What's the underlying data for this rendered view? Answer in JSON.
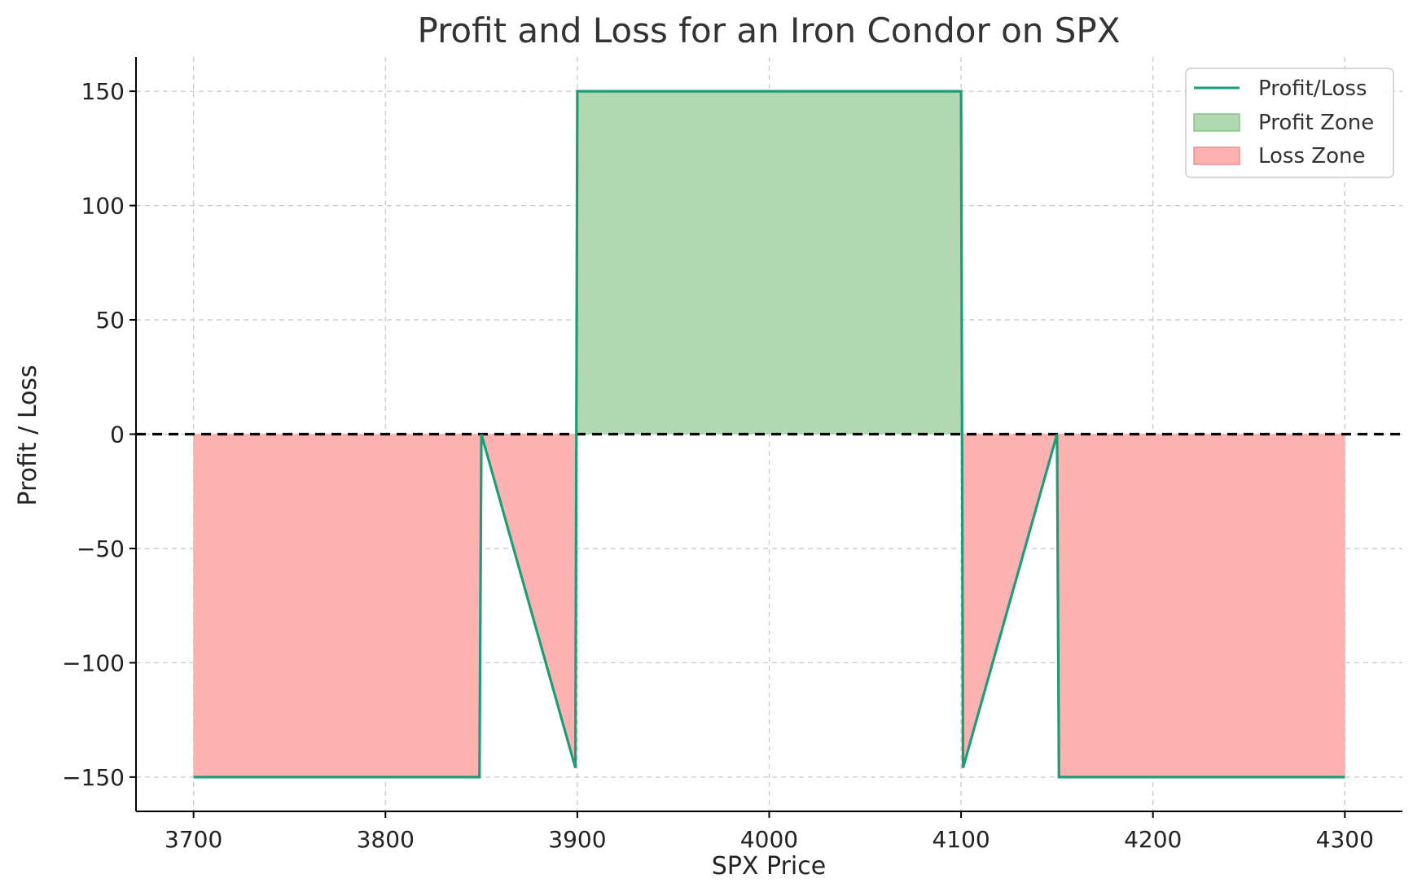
{
  "chart_data": {
    "type": "line",
    "title": "Profit and Loss for an Iron Condor on SPX",
    "xlabel": "SPX Price",
    "ylabel": "Profit / Loss",
    "xlim": [
      3670,
      4330
    ],
    "ylim": [
      -165,
      165
    ],
    "xticks": [
      3700,
      3800,
      3900,
      4000,
      4100,
      4200,
      4300
    ],
    "yticks": [
      -150,
      -100,
      -50,
      0,
      50,
      100,
      150
    ],
    "xtick_labels": [
      "3700",
      "3800",
      "3900",
      "4000",
      "4100",
      "4200",
      "4300"
    ],
    "ytick_labels": [
      "−150",
      "−100",
      "−50",
      "0",
      "50",
      "100",
      "150"
    ],
    "grid": true,
    "legend_position": "top-right",
    "reference_line": {
      "y": 0,
      "style": "dashed",
      "color": "#000000"
    },
    "series": [
      {
        "name": "Profit/Loss",
        "color": "#1a9e7a",
        "x": [
          3700,
          3849,
          3850,
          3899,
          3900,
          4100,
          4101,
          4150,
          4151,
          4300
        ],
        "y": [
          -150,
          -150,
          0,
          -146,
          150,
          150,
          -146,
          0,
          -150,
          -150
        ]
      }
    ],
    "fills": [
      {
        "name": "Profit Zone",
        "color": "#b2d8b1",
        "edge": "#86c486"
      },
      {
        "name": "Loss Zone",
        "color": "#fdb2b2",
        "edge": "#f08c8c"
      }
    ]
  }
}
